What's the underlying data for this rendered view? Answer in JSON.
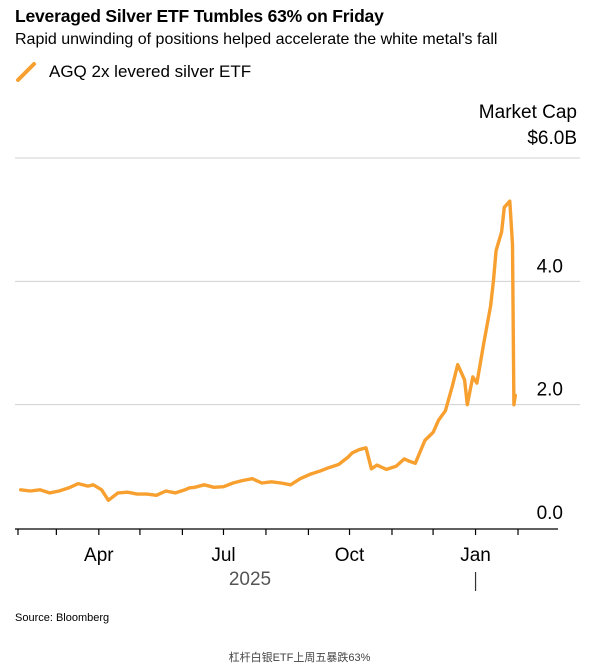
{
  "title": "Leveraged Silver ETF Tumbles 63% on Friday",
  "subtitle": "Rapid unwinding of positions helped accelerate the white metal's fall",
  "legend": {
    "label": "AGQ 2x levered silver ETF",
    "color": "#f7a030"
  },
  "axis_title": {
    "line1": "Market Cap",
    "line2": "$6.0B"
  },
  "source": "Source: Bloomberg",
  "caption": "杠杆白银ETF上周五暴跌63%",
  "chart_data": {
    "type": "line",
    "title": "Leveraged Silver ETF Tumbles 63% on Friday",
    "subtitle": "Rapid unwinding of positions helped accelerate the white metal's fall",
    "ylabel": "Market Cap",
    "unit": "B",
    "ylim": [
      0,
      6
    ],
    "y_ticks": [
      {
        "value": 0,
        "label": "0.0"
      },
      {
        "value": 2,
        "label": "2.0"
      },
      {
        "value": 4,
        "label": "4.0"
      },
      {
        "value": 6,
        "label": "$6.0B"
      }
    ],
    "xlim": [
      "2025-02-01",
      "2026-02-28"
    ],
    "x_month_ticks": [
      "2025-02-01",
      "2025-03-01",
      "2025-04-01",
      "2025-05-01",
      "2025-06-01",
      "2025-07-01",
      "2025-08-01",
      "2025-09-01",
      "2025-10-01",
      "2025-11-01",
      "2025-12-01",
      "2026-01-01",
      "2026-02-01"
    ],
    "x_labels": [
      {
        "date": "2025-04-01",
        "label": "Apr"
      },
      {
        "date": "2025-07-01",
        "label": "Jul"
      },
      {
        "date": "2025-10-01",
        "label": "Oct"
      },
      {
        "date": "2026-01-01",
        "label": "Jan"
      }
    ],
    "year_label": "2025",
    "year_marker_date": "2026-01-01",
    "grid": true,
    "legend_position": "top-left",
    "series": [
      {
        "name": "AGQ 2x levered silver ETF",
        "color": "#f7a030",
        "x": [
          "2025-02-03",
          "2025-02-10",
          "2025-02-17",
          "2025-02-24",
          "2025-03-03",
          "2025-03-10",
          "2025-03-17",
          "2025-03-24",
          "2025-03-28",
          "2025-04-03",
          "2025-04-08",
          "2025-04-15",
          "2025-04-22",
          "2025-04-29",
          "2025-05-06",
          "2025-05-13",
          "2025-05-20",
          "2025-05-27",
          "2025-06-03",
          "2025-06-06",
          "2025-06-10",
          "2025-06-17",
          "2025-06-24",
          "2025-07-01",
          "2025-07-08",
          "2025-07-15",
          "2025-07-22",
          "2025-07-29",
          "2025-08-05",
          "2025-08-12",
          "2025-08-19",
          "2025-08-26",
          "2025-09-02",
          "2025-09-09",
          "2025-09-16",
          "2025-09-23",
          "2025-09-30",
          "2025-10-03",
          "2025-10-08",
          "2025-10-13",
          "2025-10-17",
          "2025-10-21",
          "2025-10-28",
          "2025-11-04",
          "2025-11-10",
          "2025-11-14",
          "2025-11-18",
          "2025-11-25",
          "2025-12-01",
          "2025-12-05",
          "2025-12-10",
          "2025-12-15",
          "2025-12-19",
          "2025-12-24",
          "2025-12-26",
          "2025-12-30",
          "2026-01-02",
          "2026-01-07",
          "2026-01-12",
          "2026-01-14",
          "2026-01-16",
          "2026-01-20",
          "2026-01-22",
          "2026-01-26",
          "2026-01-28",
          "2026-01-29",
          "2026-01-30"
        ],
        "values": [
          0.62,
          0.6,
          0.62,
          0.57,
          0.6,
          0.65,
          0.72,
          0.68,
          0.7,
          0.62,
          0.45,
          0.57,
          0.58,
          0.55,
          0.55,
          0.53,
          0.6,
          0.57,
          0.62,
          0.65,
          0.66,
          0.7,
          0.66,
          0.67,
          0.73,
          0.77,
          0.8,
          0.73,
          0.75,
          0.73,
          0.7,
          0.8,
          0.87,
          0.92,
          0.98,
          1.03,
          1.15,
          1.22,
          1.27,
          1.3,
          0.96,
          1.02,
          0.95,
          1.0,
          1.12,
          1.08,
          1.05,
          1.42,
          1.55,
          1.75,
          1.9,
          2.3,
          2.65,
          2.4,
          2.0,
          2.45,
          2.35,
          3.0,
          3.6,
          4.0,
          4.5,
          4.8,
          5.2,
          5.3,
          4.6,
          2.0,
          2.15
        ]
      }
    ]
  }
}
